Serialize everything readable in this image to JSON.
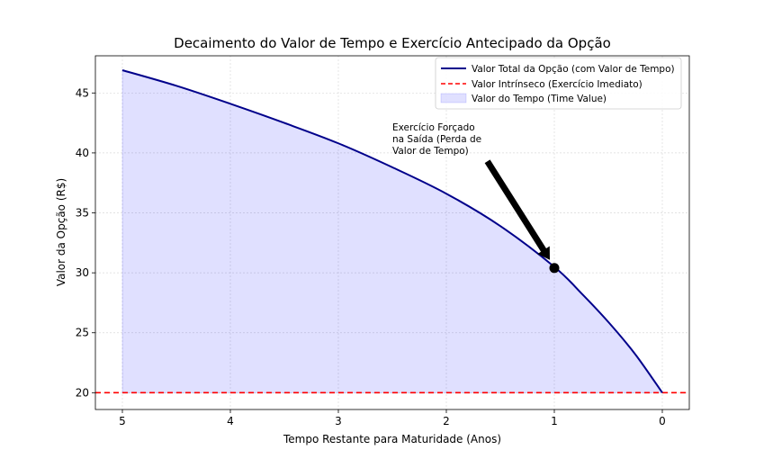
{
  "chart_data": {
    "type": "line",
    "title": "Decaimento do Valor de Tempo e Exercício Antecipado da Opção",
    "xlabel": "Tempo Restante para Maturidade (Anos)",
    "ylabel": "Valor da Opção (R$)",
    "x_inverted": true,
    "xlim": [
      5.25,
      -0.25
    ],
    "ylim": [
      18.6,
      48.1
    ],
    "xticks": [
      5,
      4,
      3,
      2,
      1,
      0
    ],
    "yticks": [
      20,
      25,
      30,
      35,
      40,
      45
    ],
    "grid": true,
    "legend_position": "top-right",
    "series": [
      {
        "name": "Valor Total da Opção (com Valor de Tempo)",
        "kind": "line",
        "color": "#00008b",
        "x": [
          5,
          4.5,
          4,
          3.5,
          3,
          2.5,
          2,
          1.5,
          1,
          0.75,
          0.5,
          0.25,
          0
        ],
        "y": [
          46.9,
          45.6,
          44.1,
          42.5,
          40.8,
          38.8,
          36.6,
          33.9,
          30.5,
          28.3,
          25.9,
          23.2,
          20.0
        ]
      },
      {
        "name": "Valor Intrínseco (Exercício Imediato)",
        "kind": "hline",
        "color": "#ff0000",
        "y": 20
      },
      {
        "name": "Valor do Tempo (Time Value)",
        "kind": "fill",
        "color": "#0000ff",
        "alpha": 0.12
      }
    ],
    "annotation": {
      "text": [
        "Exercício Forçado",
        "na Saída (Perda de",
        "Valor de Tempo)"
      ],
      "point": {
        "x": 1,
        "y": 30.4
      },
      "text_anchor": {
        "x": 2.5,
        "y": 41.9
      }
    }
  }
}
